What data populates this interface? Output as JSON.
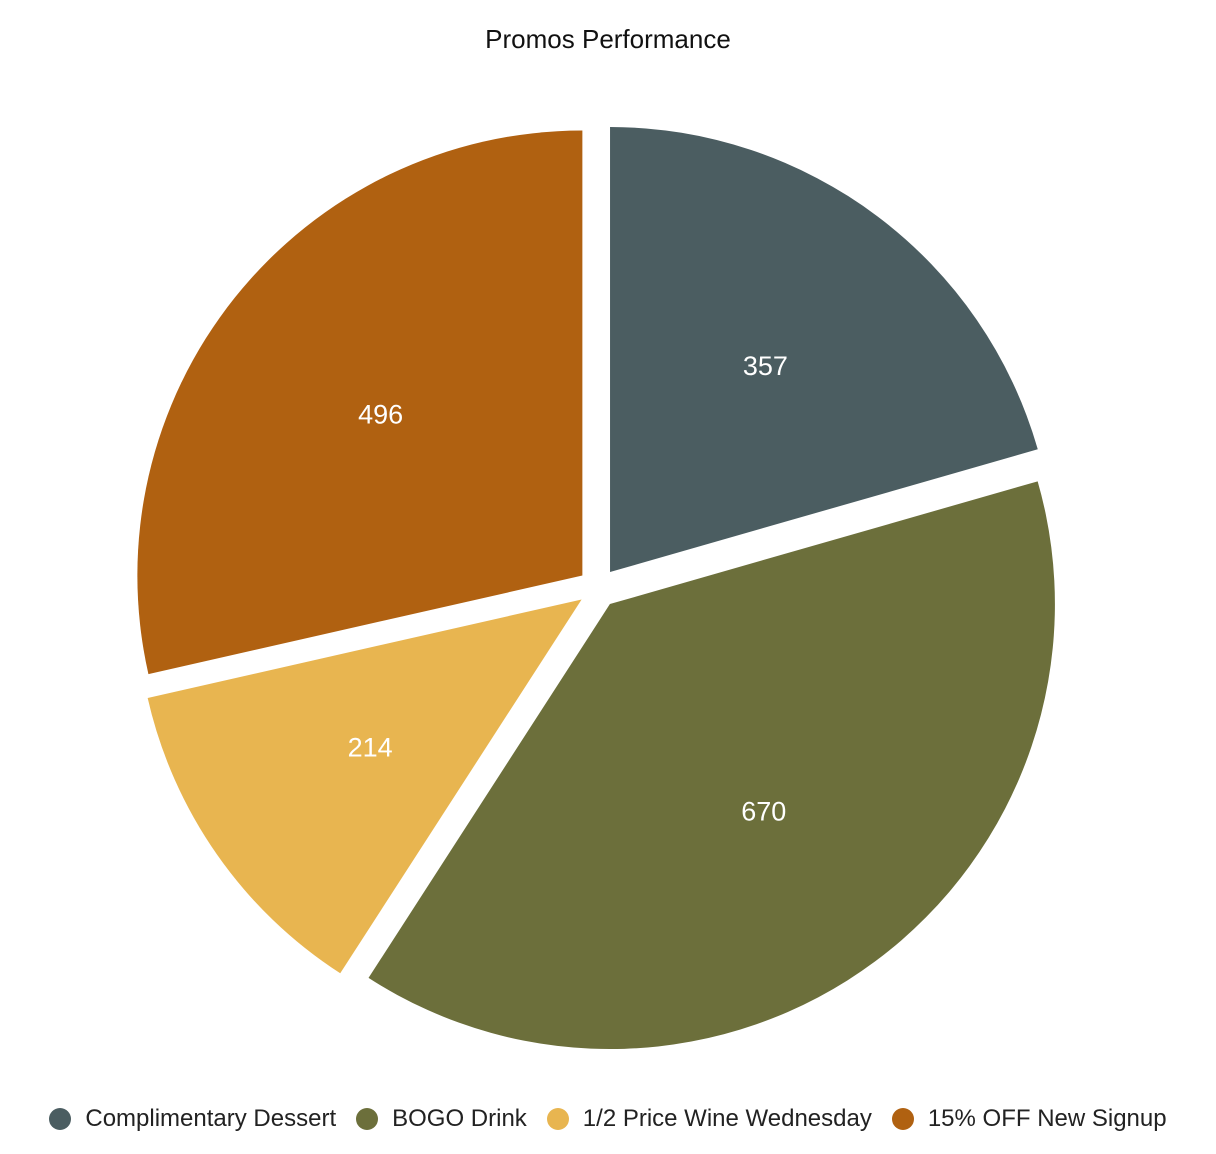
{
  "chart_data": {
    "type": "pie",
    "title": "Promos Performance",
    "slices": [
      {
        "label": "Complimentary Dessert",
        "value": 357,
        "color": "#4b5d61"
      },
      {
        "label": "BOGO Drink",
        "value": 670,
        "color": "#6c6f3b"
      },
      {
        "label": "1/2 Price Wine Wednesday",
        "value": 214,
        "color": "#e8b550"
      },
      {
        "label": "15% OFF New Signup",
        "value": 496,
        "color": "#b06111"
      }
    ],
    "exploded": true,
    "data_labels": true,
    "legend_position": "bottom"
  }
}
